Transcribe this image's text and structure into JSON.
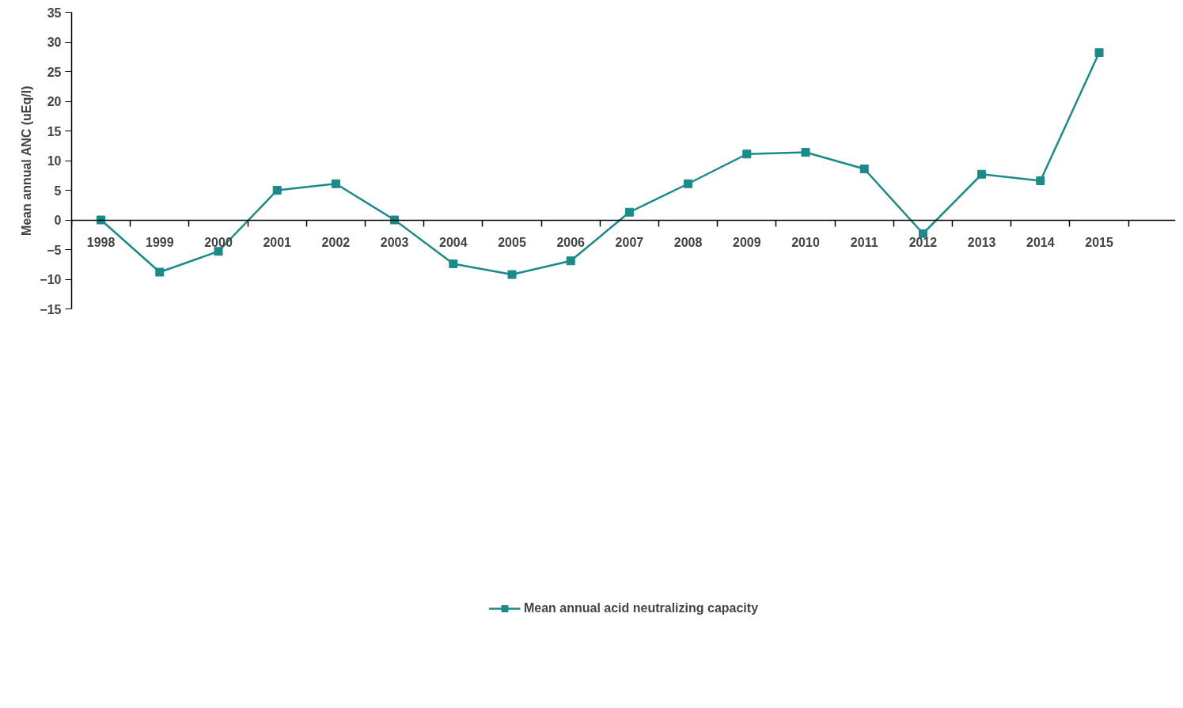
{
  "chart_data": {
    "type": "line",
    "ylabel": "Mean annual ANC (uEq/l)",
    "categories": [
      "1998",
      "1999",
      "2000",
      "2001",
      "2002",
      "2003",
      "2004",
      "2005",
      "2006",
      "2007",
      "2008",
      "2009",
      "2010",
      "2011",
      "2012",
      "2013",
      "2014",
      "2015"
    ],
    "series": [
      {
        "name": "Mean annual acid neutralizing capacity",
        "color": "#1a8a8a",
        "values": [
          0,
          -8.8,
          -5.3,
          5.0,
          6.1,
          0,
          -7.4,
          -9.2,
          -6.9,
          1.3,
          6.1,
          11.1,
          11.4,
          8.6,
          -2.3,
          7.7,
          6.6,
          28.2
        ]
      }
    ],
    "ylim": [
      -15,
      35
    ],
    "yticks": [
      -15,
      -10,
      -5,
      0,
      5,
      10,
      15,
      20,
      25,
      30,
      35
    ],
    "grid": false,
    "legend": "bottom",
    "marker": "square",
    "line_style": "solid"
  }
}
